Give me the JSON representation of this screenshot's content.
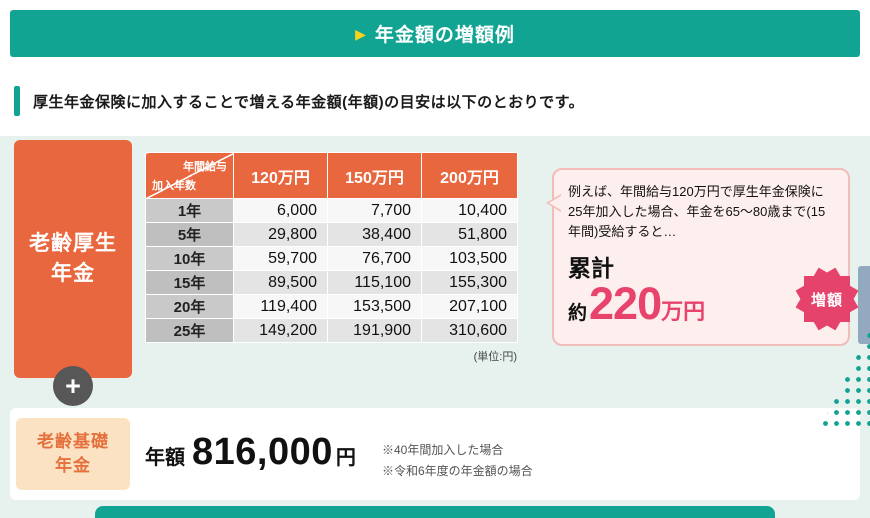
{
  "colors": {
    "teal": "#12a493",
    "mint_bg": "#e7f2ef",
    "orange": "#e8673f",
    "badge_pink": "#e5436b",
    "amount_crimson": "#e8436d",
    "arrow_yellow": "#f7d31c",
    "cream": "#fbe2c2",
    "slate_tab": "#92a9bf"
  },
  "header": {
    "arrow": "▶",
    "title": "年金額の増額例"
  },
  "intro": {
    "text": "厚生年金保険に加入することで増える年金額(年額)の目安は以下のとおりです。"
  },
  "main": {
    "left_label": {
      "line1": "老齢厚生",
      "line2": "年金"
    },
    "plus": "+",
    "table": {
      "corner_top": "年間給与",
      "corner_bottom": "加入年数",
      "columns": [
        "120万円",
        "150万円",
        "200万円"
      ],
      "rows": [
        {
          "label": "1年",
          "values": [
            "6,000",
            "7,700",
            "10,400"
          ]
        },
        {
          "label": "5年",
          "values": [
            "29,800",
            "38,400",
            "51,800"
          ]
        },
        {
          "label": "10年",
          "values": [
            "59,700",
            "76,700",
            "103,500"
          ]
        },
        {
          "label": "15年",
          "values": [
            "89,500",
            "115,100",
            "155,300"
          ]
        },
        {
          "label": "20年",
          "values": [
            "119,400",
            "153,500",
            "207,100"
          ]
        },
        {
          "label": "25年",
          "values": [
            "149,200",
            "191,900",
            "310,600"
          ]
        }
      ],
      "unit_note": "(単位:円)"
    },
    "bubble": {
      "text": "例えば、年間給与120万円で厚生年金保険に25年加入した場合、年金を65〜80歳まで(15年間)受給すると…",
      "total_label": "累計",
      "approx": "約",
      "amount": "220",
      "amount_unit": "万円",
      "badge": "増額"
    }
  },
  "basic": {
    "label_line1": "老齢基礎",
    "label_line2": "年金",
    "prefix": "年額",
    "amount": "816,000",
    "unit": "円",
    "notes": [
      "※40年間加入した場合",
      "※令和6年度の年金額の場合"
    ]
  }
}
